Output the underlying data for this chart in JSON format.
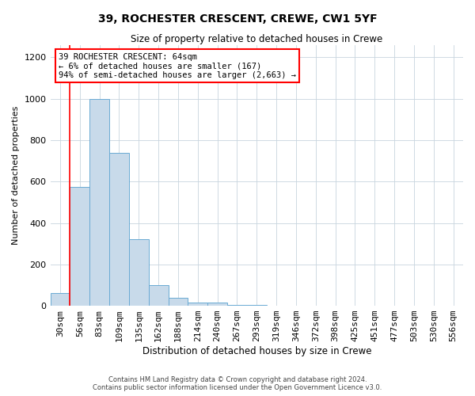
{
  "title1": "39, ROCHESTER CRESCENT, CREWE, CW1 5YF",
  "title2": "Size of property relative to detached houses in Crewe",
  "xlabel": "Distribution of detached houses by size in Crewe",
  "ylabel": "Number of detached properties",
  "annotation_title": "39 ROCHESTER CRESCENT: 64sqm",
  "annotation_line1": "← 6% of detached houses are smaller (167)",
  "annotation_line2": "94% of semi-detached houses are larger (2,663) →",
  "footer1": "Contains HM Land Registry data © Crown copyright and database right 2024.",
  "footer2": "Contains public sector information licensed under the Open Government Licence v3.0.",
  "bin_labels": [
    "30sqm",
    "56sqm",
    "83sqm",
    "109sqm",
    "135sqm",
    "162sqm",
    "188sqm",
    "214sqm",
    "240sqm",
    "267sqm",
    "293sqm",
    "319sqm",
    "346sqm",
    "372sqm",
    "398sqm",
    "425sqm",
    "451sqm",
    "477sqm",
    "503sqm",
    "530sqm",
    "556sqm"
  ],
  "bar_heights": [
    60,
    575,
    1000,
    740,
    320,
    100,
    40,
    15,
    15,
    5,
    5,
    2,
    2,
    0,
    0,
    0,
    0,
    0,
    0,
    0,
    0
  ],
  "bar_color": "#c8daea",
  "bar_edge_color": "#6aaad4",
  "red_line_index": 1,
  "ylim_max": 1260,
  "yticks": [
    0,
    200,
    400,
    600,
    800,
    1000,
    1200
  ],
  "title1_fontsize": 10,
  "title2_fontsize": 8.5,
  "xlabel_fontsize": 8.5,
  "ylabel_fontsize": 8,
  "tick_fontsize": 8,
  "annot_fontsize": 7.5,
  "footer_fontsize": 6
}
